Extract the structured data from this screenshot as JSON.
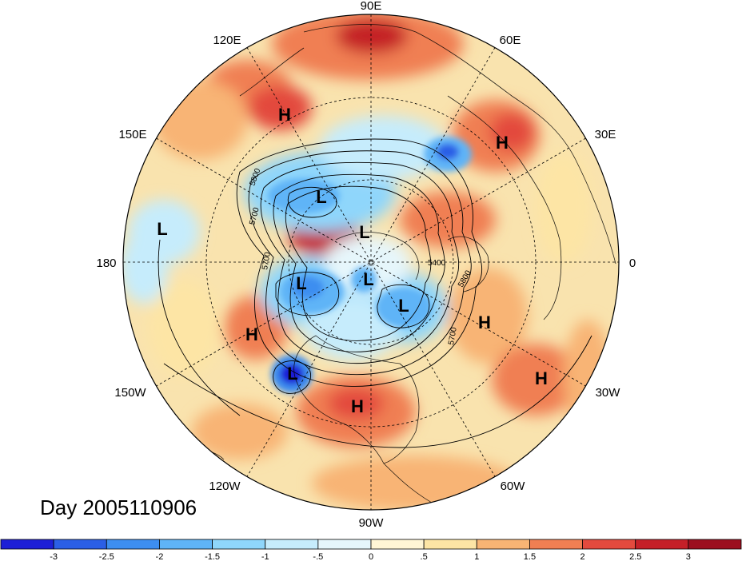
{
  "title": "Day 2005110906",
  "longitude_labels": {
    "lon_90e": "90E",
    "lon_60e": "60E",
    "lon_120e": "120E",
    "lon_30e": "30E",
    "lon_150e": "150E",
    "lon_180": "180",
    "lon_0": "0",
    "lon_150w": "150W",
    "lon_30w": "30W",
    "lon_120w": "120W",
    "lon_60w": "60W",
    "lon_90w": "90W"
  },
  "pressure_centers": [
    {
      "label": "H"
    },
    {
      "label": "H"
    },
    {
      "label": "L"
    },
    {
      "label": "L"
    },
    {
      "label": "L"
    },
    {
      "label": "L"
    },
    {
      "label": "L"
    },
    {
      "label": "L"
    },
    {
      "label": "H"
    },
    {
      "label": "H"
    },
    {
      "label": "L"
    },
    {
      "label": "H"
    },
    {
      "label": "H"
    }
  ],
  "contour_labels": [
    "5800",
    "5700",
    "5700",
    "5400",
    "5800",
    "5700"
  ],
  "colorbar": {
    "ticks": [
      "-3",
      "-2.5",
      "-2",
      "-1.5",
      "-1",
      "-.5",
      "0",
      ".5",
      "1",
      "1.5",
      "2",
      "2.5",
      "3"
    ],
    "colors": [
      "#1d1fd6",
      "#2b5fe6",
      "#3d8ef0",
      "#5fb4f7",
      "#8fd6fb",
      "#c6ecfc",
      "#e6f6fb",
      "#fff5d5",
      "#fde5a5",
      "#f8b474",
      "#f07f53",
      "#e34a3e",
      "#c52028",
      "#9c0f1f"
    ]
  },
  "field_colors": {
    "ocean_base": "#f9e3ae",
    "warm_strong": "#e34a3e",
    "warm_mid": "#f07f53",
    "warm_light": "#f8b474",
    "cool_light": "#c6ecfc",
    "cool_mid": "#5fb4f7",
    "cool_strong": "#2b5fe6"
  }
}
